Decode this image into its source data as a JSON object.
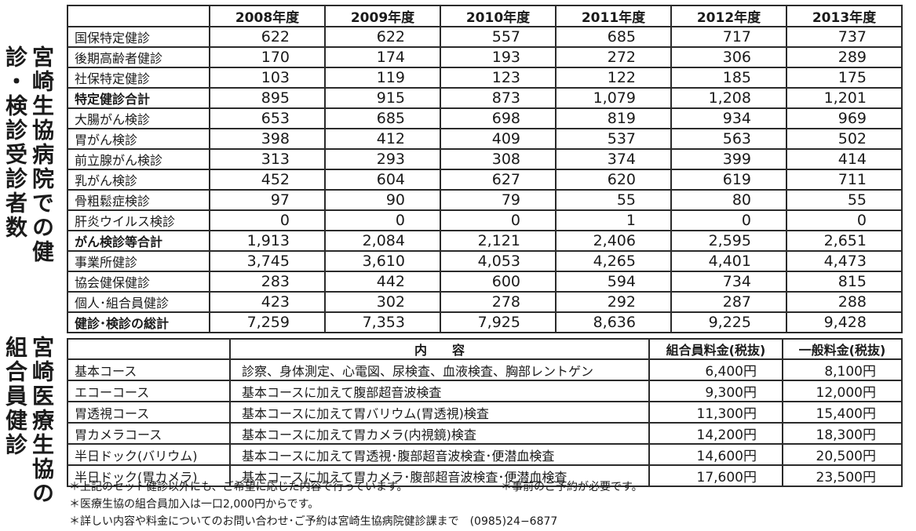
{
  "side_titles": {
    "exam_counts": "宮崎生協病院での健診・検診受診者数",
    "member_checkup": "宮崎医療生協の組合員健診"
  },
  "exam_table": {
    "years": [
      "2008年度",
      "2009年度",
      "2010年度",
      "2011年度",
      "2012年度",
      "2013年度"
    ],
    "rows": [
      {
        "name": "国保特定健診",
        "bold": false,
        "values": [
          "622",
          "622",
          "557",
          "685",
          "717",
          "737"
        ]
      },
      {
        "name": "後期高齢者健診",
        "bold": false,
        "values": [
          "170",
          "174",
          "193",
          "272",
          "306",
          "289"
        ]
      },
      {
        "name": "社保特定健診",
        "bold": false,
        "values": [
          "103",
          "119",
          "123",
          "122",
          "185",
          "175"
        ]
      },
      {
        "name": "特定健診合計",
        "bold": true,
        "values": [
          "895",
          "915",
          "873",
          "1,079",
          "1,208",
          "1,201"
        ]
      },
      {
        "name": "大腸がん検診",
        "bold": false,
        "values": [
          "653",
          "685",
          "698",
          "819",
          "934",
          "969"
        ]
      },
      {
        "name": "胃がん検診",
        "bold": false,
        "values": [
          "398",
          "412",
          "409",
          "537",
          "563",
          "502"
        ]
      },
      {
        "name": "前立腺がん検診",
        "bold": false,
        "values": [
          "313",
          "293",
          "308",
          "374",
          "399",
          "414"
        ]
      },
      {
        "name": "乳がん検診",
        "bold": false,
        "values": [
          "452",
          "604",
          "627",
          "620",
          "619",
          "711"
        ]
      },
      {
        "name": "骨粗鬆症検診",
        "bold": false,
        "values": [
          "97",
          "90",
          "79",
          "55",
          "80",
          "55"
        ]
      },
      {
        "name": "肝炎ウイルス検診",
        "bold": false,
        "values": [
          "0",
          "0",
          "0",
          "1",
          "0",
          "0"
        ]
      },
      {
        "name": "がん検診等合計",
        "bold": true,
        "values": [
          "1,913",
          "2,084",
          "2,121",
          "2,406",
          "2,595",
          "2,651"
        ]
      },
      {
        "name": "事業所健診",
        "bold": false,
        "values": [
          "3,745",
          "3,610",
          "4,053",
          "4,265",
          "4,401",
          "4,473"
        ]
      },
      {
        "name": "協会健保健診",
        "bold": false,
        "values": [
          "283",
          "442",
          "600",
          "594",
          "734",
          "815"
        ]
      },
      {
        "name": "個人･組合員健診",
        "bold": false,
        "values": [
          "423",
          "302",
          "278",
          "292",
          "287",
          "288"
        ]
      },
      {
        "name": "健診･検診の総計",
        "bold": true,
        "values": [
          "7,259",
          "7,353",
          "7,925",
          "8,636",
          "9,225",
          "9,428"
        ]
      }
    ]
  },
  "course_table": {
    "headers": {
      "content": "内　　容",
      "member_price": "組合員料金(税抜)",
      "general_price": "一般料金(税抜)"
    },
    "rows": [
      {
        "course": "基本コース",
        "content": "診察、身体測定、心電図、尿検査、血液検査、胸部レントゲン",
        "member": "6,400円",
        "general": "8,100円"
      },
      {
        "course": "エコーコース",
        "content": "基本コースに加えて腹部超音波検査",
        "member": "9,300円",
        "general": "12,000円"
      },
      {
        "course": "胃透視コース",
        "content": "基本コースに加えて胃バリウム(胃透視)検査",
        "member": "11,300円",
        "general": "15,400円"
      },
      {
        "course": "胃カメラコース",
        "content": "基本コースに加えて胃カメラ(内視鏡)検査",
        "member": "14,200円",
        "general": "18,300円"
      },
      {
        "course": "半日ドック(バリウム)",
        "content": "基本コースに加えて胃透視･腹部超音波検査･便潜血検査",
        "member": "14,600円",
        "general": "20,500円"
      },
      {
        "course": "半日ドック(胃カメラ)",
        "content": "基本コースに加えて胃カメラ･腹部超音波検査･便潜血検査",
        "member": "17,600円",
        "general": "23,500円"
      }
    ]
  },
  "notes": {
    "n1": "＊上記のセット健診以外にも、ご希望に応じた内容で行っています。",
    "n1b": "＊事前のご予約が必要です。",
    "n2": "＊医療生協の組合員加入は一口2,000円からです。",
    "n3": "＊詳しい内容や料金についてのお問い合わせ･ご予約は宮崎生協病院健診課まで　(0985)24−6877"
  }
}
